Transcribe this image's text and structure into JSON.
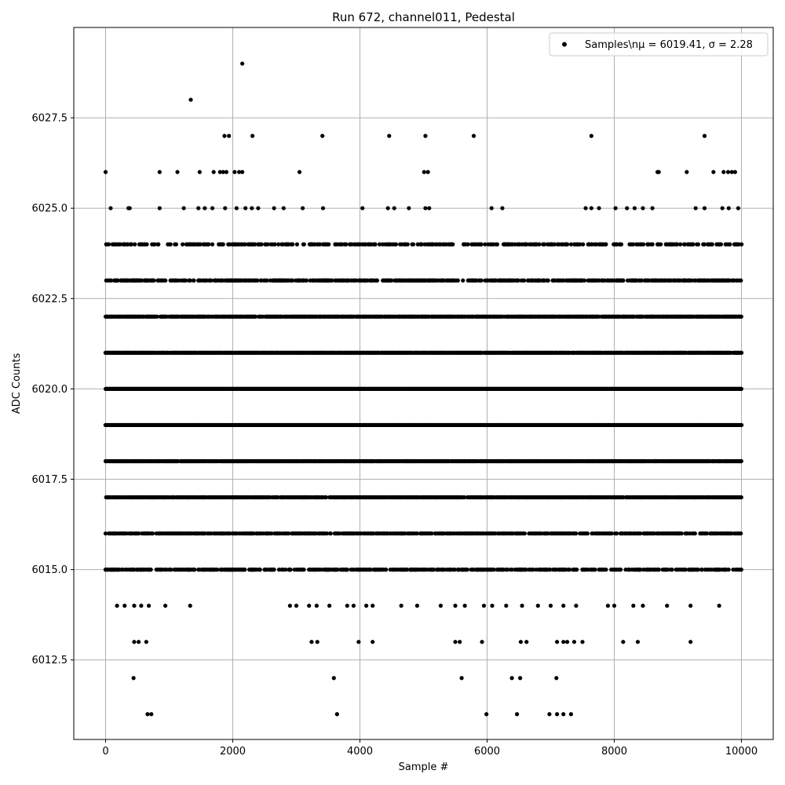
{
  "chart_data": {
    "type": "scatter",
    "title": "Run 672, channel011, Pedestal",
    "xlabel": "Sample #",
    "ylabel": "ADC Counts",
    "xlim": [
      -500,
      10500
    ],
    "ylim": [
      6010.3,
      6030.0
    ],
    "x_ticks": [
      0,
      2000,
      4000,
      6000,
      8000,
      10000
    ],
    "x_tick_labels": [
      "0",
      "2000",
      "4000",
      "6000",
      "8000",
      "10000"
    ],
    "y_ticks": [
      6012.5,
      6015.0,
      6017.5,
      6020.0,
      6022.5,
      6025.0,
      6027.5
    ],
    "y_tick_labels": [
      "6012.5",
      "6015.0",
      "6017.5",
      "6020.0",
      "6022.5",
      "6025.0",
      "6027.5"
    ],
    "grid": true,
    "legend_position": "top-right",
    "series": [
      {
        "name": "Samples\\nμ = 6019.41, σ = 2.28",
        "color": "#000000",
        "marker": "filled-circle",
        "points": [
          [
            2150,
            6029
          ],
          [
            1340,
            6028
          ],
          [
            1870,
            6027
          ],
          [
            1940,
            6027
          ],
          [
            2310,
            6027
          ],
          [
            3410,
            6027
          ],
          [
            4460,
            6027
          ],
          [
            5030,
            6027
          ],
          [
            5790,
            6027
          ],
          [
            7640,
            6027
          ],
          [
            9420,
            6027
          ],
          [
            0,
            6026
          ],
          [
            850,
            6026
          ],
          [
            1130,
            6026
          ],
          [
            1480,
            6026
          ],
          [
            1700,
            6026
          ],
          [
            1800,
            6026
          ],
          [
            1850,
            6026
          ],
          [
            1900,
            6026
          ],
          [
            2030,
            6026
          ],
          [
            2100,
            6026
          ],
          [
            2150,
            6026
          ],
          [
            3050,
            6026
          ],
          [
            5010,
            6026
          ],
          [
            5070,
            6026
          ],
          [
            8680,
            6026
          ],
          [
            8700,
            6026
          ],
          [
            9140,
            6026
          ],
          [
            9560,
            6026
          ],
          [
            9720,
            6026
          ],
          [
            9790,
            6026
          ],
          [
            9850,
            6026
          ],
          [
            9900,
            6026
          ],
          [
            80,
            6025
          ],
          [
            360,
            6025
          ],
          [
            380,
            6025
          ],
          [
            850,
            6025
          ],
          [
            1230,
            6025
          ],
          [
            1460,
            6025
          ],
          [
            1560,
            6025
          ],
          [
            1680,
            6025
          ],
          [
            1880,
            6025
          ],
          [
            2060,
            6025
          ],
          [
            2200,
            6025
          ],
          [
            2300,
            6025
          ],
          [
            2400,
            6025
          ],
          [
            2650,
            6025
          ],
          [
            2800,
            6025
          ],
          [
            3100,
            6025
          ],
          [
            3420,
            6025
          ],
          [
            4040,
            6025
          ],
          [
            4440,
            6025
          ],
          [
            4540,
            6025
          ],
          [
            4770,
            6025
          ],
          [
            5030,
            6025
          ],
          [
            5090,
            6025
          ],
          [
            6070,
            6025
          ],
          [
            6240,
            6025
          ],
          [
            7550,
            6025
          ],
          [
            7640,
            6025
          ],
          [
            7760,
            6025
          ],
          [
            8020,
            6025
          ],
          [
            8200,
            6025
          ],
          [
            8320,
            6025
          ],
          [
            8450,
            6025
          ],
          [
            8600,
            6025
          ],
          [
            9280,
            6025
          ],
          [
            9420,
            6025
          ],
          [
            9700,
            6025
          ],
          [
            9800,
            6025
          ],
          [
            9950,
            6025
          ],
          [
            0,
            6015
          ],
          [
            200,
            6015
          ],
          [
            400,
            6015
          ],
          [
            600,
            6015
          ],
          [
            800,
            6015
          ],
          [
            1100,
            6015
          ],
          [
            1400,
            6015
          ],
          [
            1700,
            6015
          ],
          [
            2000,
            6015
          ],
          [
            2300,
            6015
          ],
          [
            2500,
            6015
          ],
          [
            2900,
            6015
          ],
          [
            3200,
            6015
          ],
          [
            3500,
            6015
          ],
          [
            3800,
            6015
          ],
          [
            4100,
            6015
          ],
          [
            4400,
            6015
          ],
          [
            4700,
            6015
          ],
          [
            5000,
            6015
          ],
          [
            5300,
            6015
          ],
          [
            5600,
            6015
          ],
          [
            6000,
            6015
          ],
          [
            6300,
            6015
          ],
          [
            6600,
            6015
          ],
          [
            6900,
            6015
          ],
          [
            7200,
            6015
          ],
          [
            7500,
            6015
          ],
          [
            7800,
            6015
          ],
          [
            8100,
            6015
          ],
          [
            8400,
            6015
          ],
          [
            8800,
            6015
          ],
          [
            9100,
            6015
          ],
          [
            9600,
            6015
          ],
          [
            180,
            6014
          ],
          [
            300,
            6014
          ],
          [
            450,
            6014
          ],
          [
            560,
            6014
          ],
          [
            680,
            6014
          ],
          [
            940,
            6014
          ],
          [
            1330,
            6014
          ],
          [
            2900,
            6014
          ],
          [
            3000,
            6014
          ],
          [
            3200,
            6014
          ],
          [
            3320,
            6014
          ],
          [
            3520,
            6014
          ],
          [
            3800,
            6014
          ],
          [
            3900,
            6014
          ],
          [
            4100,
            6014
          ],
          [
            4200,
            6014
          ],
          [
            4650,
            6014
          ],
          [
            4900,
            6014
          ],
          [
            5270,
            6014
          ],
          [
            5500,
            6014
          ],
          [
            5650,
            6014
          ],
          [
            5950,
            6014
          ],
          [
            6080,
            6014
          ],
          [
            6300,
            6014
          ],
          [
            6550,
            6014
          ],
          [
            6800,
            6014
          ],
          [
            7000,
            6014
          ],
          [
            7200,
            6014
          ],
          [
            7400,
            6014
          ],
          [
            7900,
            6014
          ],
          [
            8000,
            6014
          ],
          [
            8300,
            6014
          ],
          [
            8450,
            6014
          ],
          [
            8830,
            6014
          ],
          [
            9200,
            6014
          ],
          [
            9650,
            6014
          ],
          [
            450,
            6013
          ],
          [
            520,
            6013
          ],
          [
            640,
            6013
          ],
          [
            3240,
            6013
          ],
          [
            3330,
            6013
          ],
          [
            3980,
            6013
          ],
          [
            4200,
            6013
          ],
          [
            5500,
            6013
          ],
          [
            5570,
            6013
          ],
          [
            5920,
            6013
          ],
          [
            6530,
            6013
          ],
          [
            6620,
            6013
          ],
          [
            7100,
            6013
          ],
          [
            7200,
            6013
          ],
          [
            7260,
            6013
          ],
          [
            7370,
            6013
          ],
          [
            7500,
            6013
          ],
          [
            8140,
            6013
          ],
          [
            8370,
            6013
          ],
          [
            9200,
            6013
          ],
          [
            440,
            6012
          ],
          [
            3590,
            6012
          ],
          [
            5600,
            6012
          ],
          [
            6390,
            6012
          ],
          [
            6520,
            6012
          ],
          [
            7090,
            6012
          ],
          [
            660,
            6011
          ],
          [
            720,
            6011
          ],
          [
            3640,
            6011
          ],
          [
            5990,
            6011
          ],
          [
            6470,
            6011
          ],
          [
            6980,
            6011
          ],
          [
            7100,
            6011
          ],
          [
            7200,
            6011
          ],
          [
            7320,
            6011
          ]
        ],
        "dense_bands": [
          {
            "y": 6024,
            "x_range": [
              0,
              10000
            ],
            "density": 0.35
          },
          {
            "y": 6023,
            "x_range": [
              0,
              10000
            ],
            "density": 0.55
          },
          {
            "y": 6022,
            "x_range": [
              0,
              10000
            ],
            "density": 0.8
          },
          {
            "y": 6021,
            "x_range": [
              0,
              10000
            ],
            "density": 0.9
          },
          {
            "y": 6020,
            "x_range": [
              0,
              10000
            ],
            "density": 1.0
          },
          {
            "y": 6019,
            "x_range": [
              0,
              10000
            ],
            "density": 1.0
          },
          {
            "y": 6018,
            "x_range": [
              0,
              10000
            ],
            "density": 0.9
          },
          {
            "y": 6017,
            "x_range": [
              0,
              10000
            ],
            "density": 0.8
          },
          {
            "y": 6016,
            "x_range": [
              0,
              10000
            ],
            "density": 0.55
          },
          {
            "y": 6015,
            "x_range": [
              0,
              10000
            ],
            "density": 0.45
          }
        ]
      }
    ]
  }
}
